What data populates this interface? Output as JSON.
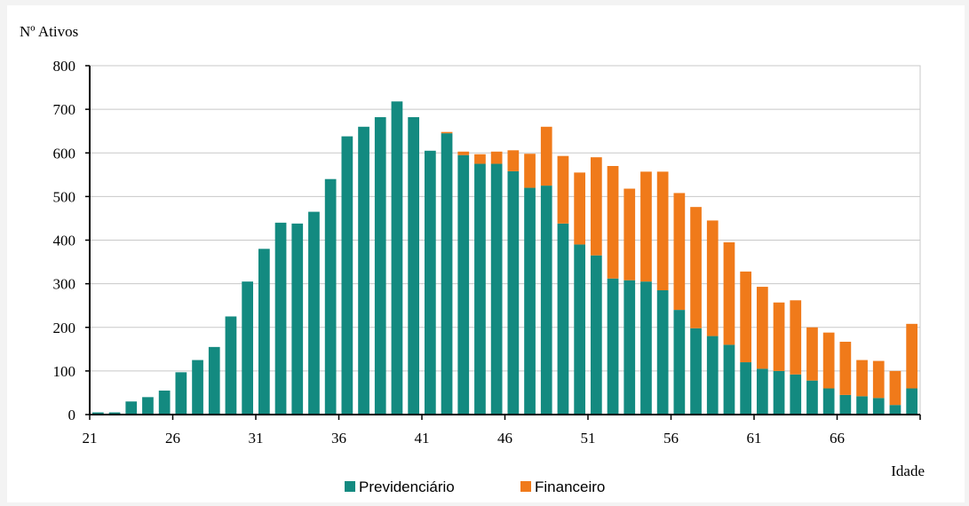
{
  "chart_data": {
    "type": "bar",
    "stacked": true,
    "ylabel": "Nº Ativos",
    "xlabel": "Idade",
    "ylim": [
      0,
      800
    ],
    "yticks": [
      0,
      100,
      200,
      300,
      400,
      500,
      600,
      700,
      800
    ],
    "xtick_labels": [
      "21",
      "26",
      "31",
      "36",
      "41",
      "46",
      "51",
      "56",
      "61",
      "66"
    ],
    "grid": "horizontal",
    "legend_position": "bottom",
    "categories": [
      21,
      22,
      23,
      24,
      25,
      26,
      27,
      28,
      29,
      30,
      31,
      32,
      33,
      34,
      35,
      36,
      37,
      38,
      39,
      40,
      41,
      42,
      43,
      44,
      45,
      46,
      47,
      48,
      49,
      50,
      51,
      52,
      53,
      54,
      55,
      56,
      57,
      58,
      59,
      60,
      61,
      62,
      63,
      64,
      65,
      66,
      67,
      68,
      69,
      70
    ],
    "series": [
      {
        "name": "Previdenciário",
        "color": "#138a80",
        "values": [
          5,
          5,
          30,
          40,
          55,
          97,
          125,
          155,
          225,
          305,
          380,
          440,
          438,
          465,
          540,
          638,
          660,
          682,
          718,
          682,
          605,
          645,
          595,
          575,
          575,
          558,
          520,
          525,
          438,
          390,
          365,
          312,
          308,
          305,
          285,
          240,
          198,
          180,
          160,
          120,
          105,
          100,
          92,
          78,
          60,
          45,
          42,
          38,
          22,
          60
        ]
      },
      {
        "name": "Financeiro",
        "color": "#f07a1a",
        "values": [
          0,
          0,
          0,
          0,
          0,
          0,
          0,
          0,
          0,
          0,
          0,
          0,
          0,
          0,
          0,
          0,
          0,
          0,
          0,
          0,
          0,
          3,
          8,
          22,
          28,
          48,
          78,
          135,
          155,
          165,
          225,
          258,
          210,
          252,
          272,
          268,
          278,
          265,
          235,
          208,
          188,
          157,
          170,
          122,
          128,
          122,
          83,
          85,
          78,
          148
        ]
      }
    ]
  }
}
